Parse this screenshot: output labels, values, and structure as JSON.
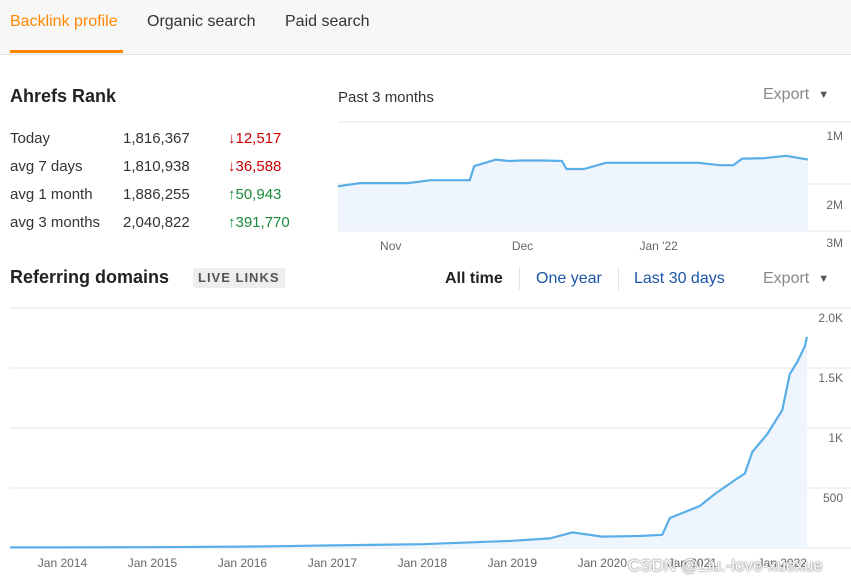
{
  "tabs": [
    {
      "label": "Backlink profile",
      "active": true
    },
    {
      "label": "Organic search",
      "active": false
    },
    {
      "label": "Paid search",
      "active": false
    }
  ],
  "ahrefs_rank": {
    "title": "Ahrefs Rank",
    "period": "Past 3 months",
    "export_label": "Export",
    "rows": [
      {
        "label": "Today",
        "value": "1,816,367",
        "change": "12,517",
        "direction": "down",
        "arrow": "↓"
      },
      {
        "label": "avg 7 days",
        "value": "1,810,938",
        "change": "36,588",
        "direction": "down",
        "arrow": "↓"
      },
      {
        "label": "avg 1 month",
        "value": "1,886,255",
        "change": "50,943",
        "direction": "up",
        "arrow": "↑"
      },
      {
        "label": "avg 3 months",
        "value": "2,040,822",
        "change": "391,770",
        "direction": "up",
        "arrow": "↑"
      }
    ]
  },
  "referring_domains": {
    "title": "Referring domains",
    "badge": "LIVE LINKS",
    "ranges": [
      "All time",
      "One year",
      "Last 30 days"
    ],
    "active_range": "All time",
    "export_label": "Export"
  },
  "watermark": "CSDN @Liu.-love-xuexue",
  "colors": {
    "accent": "#ff8800",
    "line": "#5aaee8",
    "fill": "#eef5fd",
    "down": "#cc0000",
    "up": "#1a8a3a",
    "link": "#1a55a6"
  },
  "chart_data": [
    {
      "type": "area",
      "inverted_y": true,
      "x": [
        "Oct 20",
        "Oct 25",
        "Oct 30",
        "Nov 5",
        "Nov 10",
        "Nov 15",
        "Nov 19",
        "Nov 20",
        "Nov 25",
        "Nov 28",
        "Dec 1",
        "Dec 6",
        "Dec 10",
        "Dec 11",
        "Dec 15",
        "Dec 20",
        "Dec 25",
        "Dec 30",
        "Jan 5",
        "Jan 10",
        "Jan 15",
        "Jan 18",
        "Jan 20",
        "Jan 25",
        "Jan 30",
        "Feb 4"
      ],
      "values": [
        2.05,
        1.98,
        1.98,
        1.98,
        1.92,
        1.92,
        1.92,
        1.62,
        1.48,
        1.51,
        1.5,
        1.5,
        1.51,
        1.68,
        1.68,
        1.55,
        1.55,
        1.55,
        1.55,
        1.55,
        1.6,
        1.6,
        1.46,
        1.45,
        1.4,
        1.48
      ],
      "y_ticks": [
        "1M",
        "2M",
        "3M"
      ],
      "ylim": [
        1,
        3
      ],
      "x_ticks": [
        "Nov",
        "Dec",
        "Jan '22"
      ],
      "grid": true
    },
    {
      "type": "area",
      "x": [
        "2013-06",
        "2014-01",
        "2015-01",
        "2016-01",
        "2016-06",
        "2017-01",
        "2018-01",
        "2019-01",
        "2019-06",
        "2019-09",
        "2020-01",
        "2020-06",
        "2020-09",
        "2020-10",
        "2020-12",
        "2021-02",
        "2021-04",
        "2021-07",
        "2021-08",
        "2021-09",
        "2021-11",
        "2022-01",
        "2022-02",
        "2022-03",
        "2022-04",
        "2022-04-10"
      ],
      "values": [
        5,
        5,
        7,
        12,
        15,
        22,
        32,
        60,
        80,
        130,
        95,
        100,
        110,
        250,
        300,
        350,
        450,
        580,
        620,
        800,
        950,
        1150,
        1450,
        1550,
        1680,
        1760
      ],
      "y_ticks": [
        "2.0K",
        "1.5K",
        "1K",
        "500"
      ],
      "ylim": [
        0,
        2000
      ],
      "x_ticks": [
        "Jan 2014",
        "Jan 2015",
        "Jan 2016",
        "Jan 2017",
        "Jan 2018",
        "Jan 2019",
        "Jan 2020",
        "Jan 2021",
        "Jan 2022"
      ],
      "grid": true
    }
  ]
}
